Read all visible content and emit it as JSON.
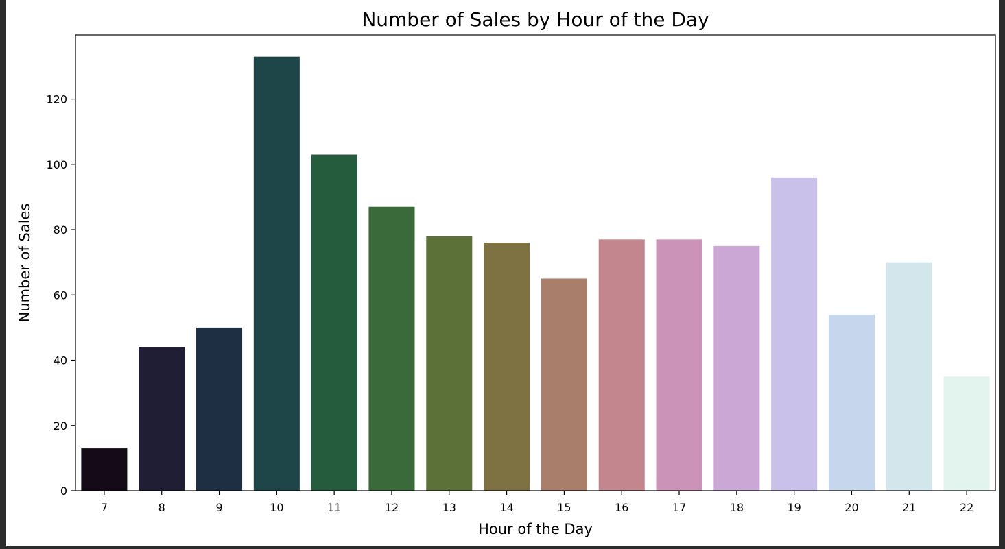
{
  "chart_data": {
    "type": "bar",
    "title": "Number of Sales by Hour of the Day",
    "xlabel": "Hour of the Day",
    "ylabel": "Number of Sales",
    "categories": [
      "7",
      "8",
      "9",
      "10",
      "11",
      "12",
      "13",
      "14",
      "15",
      "16",
      "17",
      "18",
      "19",
      "20",
      "21",
      "22"
    ],
    "values": [
      13,
      44,
      50,
      133,
      103,
      87,
      78,
      76,
      65,
      77,
      77,
      75,
      96,
      54,
      70,
      35
    ],
    "ylim": [
      0,
      139.65
    ],
    "yticks": [
      0,
      20,
      40,
      60,
      80,
      100,
      120
    ],
    "grid": false,
    "legend": "none",
    "colors": [
      "#150b18",
      "#1f1e34",
      "#1f2f43",
      "#1e4548",
      "#265c3e",
      "#3b6a3a",
      "#5c7138",
      "#7e7242",
      "#a97e6b",
      "#c3868f",
      "#cc93b8",
      "#cba7d6",
      "#c9c1ea",
      "#c6d6ec",
      "#d2e6ec",
      "#e3f3ee"
    ]
  }
}
